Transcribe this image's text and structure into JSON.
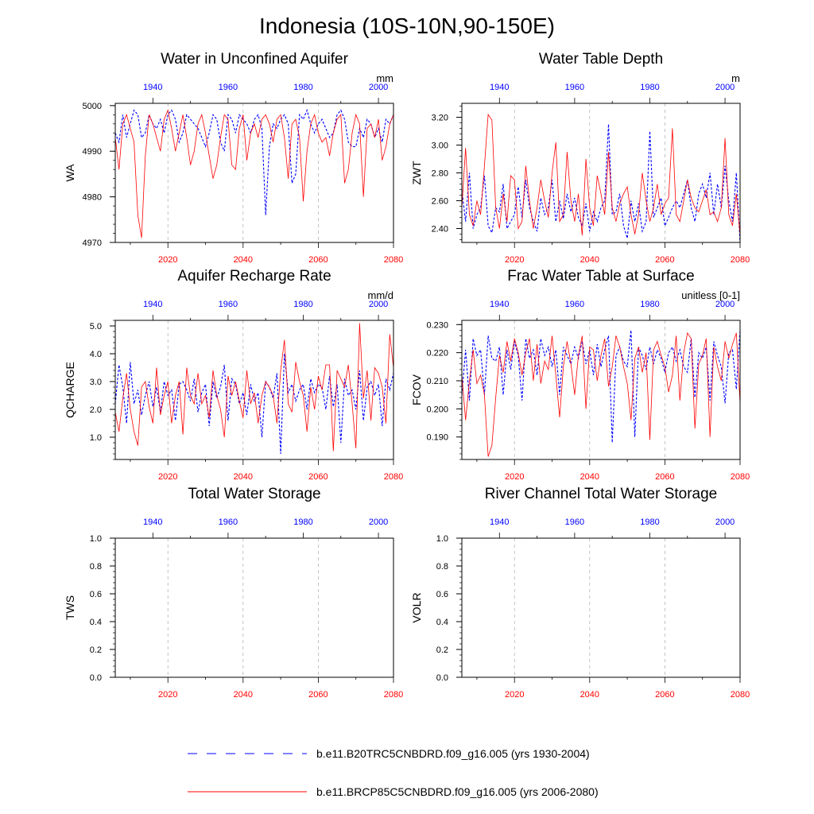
{
  "figure": {
    "title": "Indonesia (10S-10N,90-150E)",
    "colors": {
      "historical": "#0000ff",
      "future": "#ff0000",
      "axis": "#000000",
      "grid": "#aaaaaa"
    }
  },
  "legend": {
    "historical_label": "b.e11.B20TRC5CNBDRD.f09_g16.005 (yrs 1930-2004)",
    "future_label": "b.e11.BRCP85C5CNBDRD.f09_g16.005 (yrs 2006-2080)"
  },
  "chart_data": [
    {
      "type": "line",
      "title": "Water in Unconfined Aquifer",
      "ylabel": "WA",
      "units": "mm",
      "ylim": [
        4970,
        5000.5
      ],
      "yticks": [
        4970,
        4980,
        4990,
        5000
      ],
      "ytick_labels": [
        "4970",
        "4980",
        "4990",
        "5000"
      ],
      "xlim_future": [
        2006,
        2080
      ],
      "xticks_future": [
        "2020",
        "2040",
        "2060",
        "2080"
      ],
      "xticks_historical": [
        "1940",
        "1960",
        "1980",
        "2000"
      ],
      "grid_years": [
        2020,
        2040,
        2060
      ],
      "series": [
        {
          "name": "b.e11.B20TRC5CNBDRD.f09_g16.005",
          "years": "1930-2004",
          "values": [
            4994,
            4992,
            4998,
            4993,
            4996,
            4999,
            4998,
            4993,
            4994,
            4998,
            4996,
            4995,
            4997,
            4994,
            4998,
            4999,
            4997,
            4992,
            4994,
            4998,
            4997,
            4996,
            4995,
            4993,
            4991,
            4994,
            4998,
            4997,
            4992,
            4990,
            4998,
            4997,
            4994,
            4998,
            4997,
            4996,
            4994,
            4997,
            4998,
            4995,
            4976,
            4991,
            4996,
            4995,
            4997,
            4998,
            4996,
            4983,
            4985,
            4998,
            4997,
            4999,
            4996,
            4994,
            4996,
            4997,
            4995,
            4993,
            4994,
            4998,
            4999,
            4997,
            4992,
            4991,
            4991,
            4995,
            4993,
            4997,
            4996,
            4993,
            4995,
            4992,
            4997,
            4996,
            4998
          ]
        },
        {
          "name": "b.e11.BRCP85C5CNBDRD.f09_g16.005",
          "years": "2006-2080",
          "values": [
            4993,
            4986,
            4996,
            4998,
            4995,
            4992,
            4976,
            4971,
            4989,
            4998,
            4996,
            4993,
            4990,
            4997,
            4999,
            4995,
            4990,
            4994,
            4998,
            4993,
            4987,
            4990,
            4996,
            4998,
            4994,
            4989,
            4984,
            4987,
            4993,
            4998,
            4997,
            4987,
            4986,
            4995,
            4998,
            4988,
            4994,
            4996,
            4993,
            4997,
            4998,
            4996,
            4992,
            4997,
            4998,
            4993,
            4984,
            4996,
            4997,
            4993,
            4979,
            4990,
            4996,
            4998,
            4994,
            4992,
            4993,
            4989,
            4994,
            4997,
            4998,
            4983,
            4986,
            4994,
            4998,
            4996,
            4980,
            4995,
            4996,
            4993,
            4997,
            4988,
            4991,
            4996,
            4998
          ]
        }
      ]
    },
    {
      "type": "line",
      "title": "Water Table Depth",
      "ylabel": "ZWT",
      "units": "m",
      "ylim": [
        2.3,
        3.3
      ],
      "yticks": [
        2.4,
        2.6,
        2.8,
        3.0,
        3.2
      ],
      "ytick_labels": [
        "2.40",
        "2.60",
        "2.80",
        "3.00",
        "3.20"
      ],
      "xlim_future": [
        2006,
        2080
      ],
      "xticks_future": [
        "2020",
        "2040",
        "2060",
        "2080"
      ],
      "xticks_historical": [
        "1940",
        "1960",
        "1980",
        "2000"
      ],
      "grid_years": [
        2020,
        2040,
        2060
      ],
      "series": [
        {
          "name": "b.e11.B20TRC5CNBDRD.f09_g16.005",
          "years": "1930-2004",
          "values": [
            2.68,
            2.45,
            2.8,
            2.4,
            2.5,
            2.55,
            2.78,
            2.42,
            2.37,
            2.55,
            2.52,
            2.72,
            2.4,
            2.45,
            2.5,
            2.7,
            2.48,
            2.75,
            2.55,
            2.45,
            2.38,
            2.62,
            2.5,
            2.55,
            2.75,
            2.45,
            2.6,
            2.47,
            2.65,
            2.52,
            2.62,
            2.48,
            2.42,
            2.58,
            2.38,
            2.52,
            2.45,
            2.55,
            2.6,
            3.15,
            2.5,
            2.52,
            2.65,
            2.42,
            2.33,
            2.6,
            2.45,
            2.58,
            2.38,
            2.45,
            3.1,
            2.48,
            2.55,
            2.62,
            2.42,
            2.48,
            2.55,
            2.6,
            2.55,
            2.65,
            2.75,
            2.55,
            2.45,
            2.65,
            2.72,
            2.62,
            2.8,
            2.5,
            2.72,
            2.55,
            2.85,
            2.6,
            2.45,
            2.8,
            2.3
          ]
        },
        {
          "name": "b.e11.BRCP85C5CNBDRD.f09_g16.005",
          "years": "2006-2080",
          "values": [
            2.55,
            2.98,
            2.5,
            2.42,
            2.6,
            2.5,
            2.85,
            3.22,
            3.18,
            2.55,
            2.4,
            2.65,
            2.45,
            2.78,
            2.75,
            2.4,
            2.45,
            2.85,
            2.6,
            2.4,
            2.55,
            2.75,
            2.6,
            2.48,
            2.8,
            3.02,
            2.45,
            2.5,
            2.95,
            2.6,
            2.45,
            2.65,
            2.35,
            2.9,
            2.55,
            2.42,
            2.78,
            2.65,
            2.5,
            2.95,
            2.55,
            2.45,
            2.58,
            2.65,
            2.7,
            2.5,
            2.36,
            2.5,
            2.8,
            2.6,
            2.45,
            2.55,
            2.72,
            2.5,
            2.58,
            2.62,
            3.12,
            2.5,
            2.45,
            2.6,
            2.75,
            2.62,
            2.55,
            2.52,
            2.6,
            2.68,
            2.5,
            2.52,
            2.45,
            2.55,
            3.05,
            2.5,
            2.42,
            2.65,
            2.35
          ]
        }
      ]
    },
    {
      "type": "line",
      "title": "Aquifer Recharge Rate",
      "ylabel": "QCHARGE",
      "units": "mm/d",
      "ylim": [
        0.2,
        5.2
      ],
      "yticks": [
        1,
        2,
        3,
        4,
        5
      ],
      "ytick_labels": [
        "1.0",
        "2.0",
        "3.0",
        "4.0",
        "5.0"
      ],
      "xlim_future": [
        2006,
        2080
      ],
      "xticks_future": [
        "2020",
        "2040",
        "2060",
        "2080"
      ],
      "xticks_historical": [
        "1940",
        "1960",
        "1980",
        "2000"
      ],
      "grid_years": [
        2020,
        2040,
        2060
      ],
      "series": [
        {
          "name": "b.e11.B20TRC5CNBDRD.f09_g16.005",
          "years": "1930-2004",
          "values": [
            2.2,
            3.6,
            2.8,
            1.5,
            3.7,
            2.2,
            2.7,
            1.8,
            2.5,
            3.0,
            2.1,
            2.8,
            1.9,
            3.0,
            2.5,
            2.7,
            1.6,
            2.9,
            3.0,
            2.7,
            2.3,
            3.1,
            1.9,
            2.6,
            2.9,
            1.4,
            3.0,
            2.4,
            2.8,
            3.6,
            1.6,
            3.1,
            2.9,
            2.2,
            2.6,
            1.8,
            2.9,
            2.3,
            2.6,
            1.0,
            3.0,
            2.8,
            2.4,
            3.3,
            0.4,
            4.0,
            2.6,
            2.9,
            2.3,
            2.7,
            2.9,
            2.0,
            3.1,
            2.6,
            2.9,
            2.8,
            2.0,
            3.2,
            2.1,
            2.9,
            0.8,
            3.1,
            2.5,
            2.7,
            2.0,
            3.4,
            1.6,
            2.8,
            3.0,
            2.5,
            2.9,
            1.4,
            3.1,
            2.7,
            3.3
          ]
        },
        {
          "name": "b.e11.BRCP85C5CNBDRD.f09_g16.005",
          "years": "2006-2080",
          "values": [
            1.9,
            1.2,
            2.4,
            3.3,
            2.0,
            1.2,
            0.7,
            2.8,
            3.0,
            2.1,
            1.5,
            3.5,
            1.8,
            2.5,
            3.0,
            1.5,
            2.5,
            3.0,
            1.1,
            3.5,
            2.5,
            2.2,
            3.3,
            2.2,
            2.5,
            1.7,
            3.4,
            2.5,
            2.0,
            1.0,
            3.2,
            2.5,
            3.0,
            2.3,
            1.7,
            3.4,
            2.2,
            2.6,
            1.5,
            2.5,
            3.0,
            2.8,
            2.5,
            1.5,
            3.4,
            4.5,
            2.2,
            1.9,
            3.7,
            3.0,
            2.5,
            1.2,
            2.8,
            2.0,
            3.2,
            2.7,
            3.6,
            3.6,
            0.5,
            3.4,
            3.1,
            2.8,
            3.6,
            2.2,
            0.6,
            5.1,
            2.4,
            3.4,
            1.6,
            3.5,
            3.3,
            2.8,
            1.5,
            4.7,
            3.5
          ]
        }
      ]
    },
    {
      "type": "line",
      "title": "Frac Water Table at Surface",
      "ylabel": "FCOV",
      "units": "unitless [0-1]",
      "ylim": [
        0.182,
        0.2315
      ],
      "yticks": [
        0.19,
        0.2,
        0.21,
        0.22,
        0.23
      ],
      "ytick_labels": [
        "0.190",
        "0.200",
        "0.210",
        "0.220",
        "0.230"
      ],
      "xlim_future": [
        2006,
        2080
      ],
      "xticks_future": [
        "2020",
        "2040",
        "2060",
        "2080"
      ],
      "xticks_historical": [
        "1940",
        "1960",
        "1980",
        "2000"
      ],
      "grid_years": [
        2020,
        2040,
        2060
      ],
      "series": [
        {
          "name": "b.e11.B20TRC5CNBDRD.f09_g16.005",
          "years": "1930-2004",
          "values": [
            0.205,
            0.221,
            0.203,
            0.225,
            0.219,
            0.221,
            0.205,
            0.226,
            0.218,
            0.217,
            0.222,
            0.205,
            0.221,
            0.214,
            0.224,
            0.219,
            0.203,
            0.225,
            0.218,
            0.221,
            0.212,
            0.225,
            0.219,
            0.222,
            0.215,
            0.221,
            0.205,
            0.222,
            0.219,
            0.216,
            0.222,
            0.218,
            0.224,
            0.216,
            0.221,
            0.212,
            0.223,
            0.215,
            0.221,
            0.226,
            0.188,
            0.219,
            0.222,
            0.217,
            0.215,
            0.228,
            0.19,
            0.222,
            0.219,
            0.214,
            0.222,
            0.216,
            0.221,
            0.218,
            0.213,
            0.22,
            0.222,
            0.217,
            0.221,
            0.215,
            0.213,
            0.225,
            0.204,
            0.22,
            0.218,
            0.222,
            0.203,
            0.224,
            0.219,
            0.215,
            0.202,
            0.22,
            0.221,
            0.207,
            0.228
          ]
        },
        {
          "name": "b.e11.BRCP85C5CNBDRD.f09_g16.005",
          "years": "2006-2080",
          "values": [
            0.212,
            0.196,
            0.21,
            0.221,
            0.209,
            0.212,
            0.205,
            0.183,
            0.187,
            0.204,
            0.219,
            0.213,
            0.224,
            0.217,
            0.225,
            0.22,
            0.212,
            0.22,
            0.225,
            0.21,
            0.223,
            0.209,
            0.217,
            0.214,
            0.226,
            0.212,
            0.197,
            0.215,
            0.224,
            0.216,
            0.205,
            0.219,
            0.226,
            0.2,
            0.222,
            0.221,
            0.21,
            0.219,
            0.225,
            0.208,
            0.215,
            0.226,
            0.222,
            0.215,
            0.209,
            0.196,
            0.218,
            0.222,
            0.213,
            0.22,
            0.189,
            0.221,
            0.224,
            0.219,
            0.215,
            0.206,
            0.212,
            0.226,
            0.203,
            0.22,
            0.227,
            0.225,
            0.193,
            0.216,
            0.219,
            0.225,
            0.19,
            0.222,
            0.215,
            0.21,
            0.224,
            0.218,
            0.223,
            0.227,
            0.202
          ]
        }
      ]
    },
    {
      "type": "line",
      "title": "Total Water Storage",
      "ylabel": "TWS",
      "units": "",
      "ylim": [
        0,
        1
      ],
      "yticks": [
        0,
        0.2,
        0.4,
        0.6,
        0.8,
        1.0
      ],
      "ytick_labels": [
        "0.0",
        "0.2",
        "0.4",
        "0.6",
        "0.8",
        "1.0"
      ],
      "xlim_future": [
        2006,
        2080
      ],
      "xticks_future": [
        "2020",
        "2040",
        "2060",
        "2080"
      ],
      "xticks_historical": [
        "1940",
        "1960",
        "1980",
        "2000"
      ],
      "grid_years": [
        2020,
        2040,
        2060
      ],
      "series": []
    },
    {
      "type": "line",
      "title": "River Channel Total Water Storage",
      "ylabel": "VOLR",
      "units": "",
      "ylim": [
        0,
        1
      ],
      "yticks": [
        0,
        0.2,
        0.4,
        0.6,
        0.8,
        1.0
      ],
      "ytick_labels": [
        "0.0",
        "0.2",
        "0.4",
        "0.6",
        "0.8",
        "1.0"
      ],
      "xlim_future": [
        2006,
        2080
      ],
      "xticks_future": [
        "2020",
        "2040",
        "2060",
        "2080"
      ],
      "xticks_historical": [
        "1940",
        "1960",
        "1980",
        "2000"
      ],
      "grid_years": [
        2020,
        2040,
        2060
      ],
      "series": []
    }
  ]
}
